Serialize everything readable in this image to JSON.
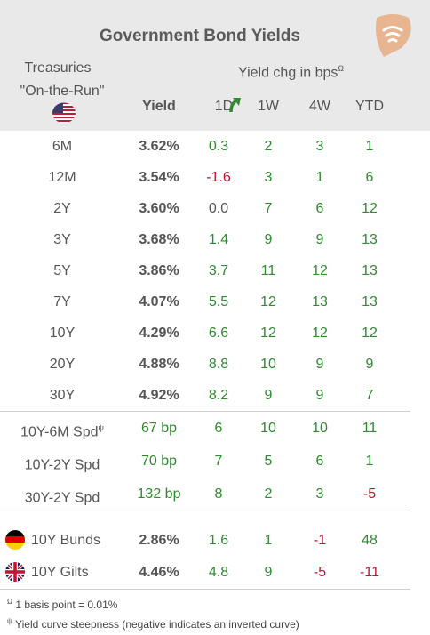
{
  "title": "Government Bond Yields",
  "subheader": {
    "treasuries": "Treasuries",
    "on_the_run": "\"On-the-Run\"",
    "yield_chg": "Yield chg in bps",
    "yield_chg_sup": "Ω"
  },
  "columns": {
    "yield": "Yield",
    "d1": "1D",
    "w1": "1W",
    "w4": "4W",
    "ytd": "YTD"
  },
  "treasuries": [
    {
      "label": "6M",
      "yield": "3.62%",
      "d1": "0.3",
      "w1": "2",
      "w4": "3",
      "ytd": "1"
    },
    {
      "label": "12M",
      "yield": "3.54%",
      "d1": "-1.6",
      "w1": "3",
      "w4": "1",
      "ytd": "6"
    },
    {
      "label": "2Y",
      "yield": "3.60%",
      "d1": "0.0",
      "w1": "7",
      "w4": "6",
      "ytd": "12"
    },
    {
      "label": "3Y",
      "yield": "3.68%",
      "d1": "1.4",
      "w1": "9",
      "w4": "9",
      "ytd": "13"
    },
    {
      "label": "5Y",
      "yield": "3.86%",
      "d1": "3.7",
      "w1": "11",
      "w4": "12",
      "ytd": "13"
    },
    {
      "label": "7Y",
      "yield": "4.07%",
      "d1": "5.5",
      "w1": "12",
      "w4": "13",
      "ytd": "13"
    },
    {
      "label": "10Y",
      "yield": "4.29%",
      "d1": "6.6",
      "w1": "12",
      "w4": "12",
      "ytd": "12"
    },
    {
      "label": "20Y",
      "yield": "4.88%",
      "d1": "8.8",
      "w1": "10",
      "w4": "9",
      "ytd": "9"
    },
    {
      "label": "30Y",
      "yield": "4.92%",
      "d1": "8.2",
      "w1": "9",
      "w4": "9",
      "ytd": "7"
    }
  ],
  "spreads": [
    {
      "label": "10Y-6M Spd",
      "sup": "ψ",
      "yield": "67 bp",
      "d1": "6",
      "w1": "10",
      "w4": "10",
      "ytd": "11"
    },
    {
      "label": "10Y-2Y Spd",
      "sup": "",
      "yield": "70 bp",
      "d1": "7",
      "w1": "5",
      "w4": "6",
      "ytd": "1"
    },
    {
      "label": "30Y-2Y Spd",
      "sup": "",
      "yield": "132 bp",
      "d1": "8",
      "w1": "2",
      "w4": "3",
      "ytd": "-5"
    }
  ],
  "foreign": [
    {
      "label": "10Y Bunds",
      "flag": "germany-flag-icon",
      "yield": "2.86%",
      "d1": "1.6",
      "w1": "1",
      "w4": "-1",
      "ytd": "48"
    },
    {
      "label": "10Y Gilts",
      "flag": "uk-flag-icon",
      "yield": "4.46%",
      "d1": "4.8",
      "w1": "9",
      "w4": "-5",
      "ytd": "-11"
    }
  ],
  "footnotes": {
    "bp_sup": "Ω",
    "bp": "1 basis point = 0.01%",
    "curve_sup": "ψ",
    "curve": "Yield curve steepness (negative indicates an inverted curve)"
  },
  "colors": {
    "positive": "#2e8b2e",
    "negative": "#c0152f",
    "header_bg": "#e9e9e9",
    "logo": "#e7b58f"
  },
  "icons": {
    "logo": "wifi-signal-icon",
    "us_flag": "us-flag-icon",
    "arrow": "curved-up-arrow-icon"
  }
}
